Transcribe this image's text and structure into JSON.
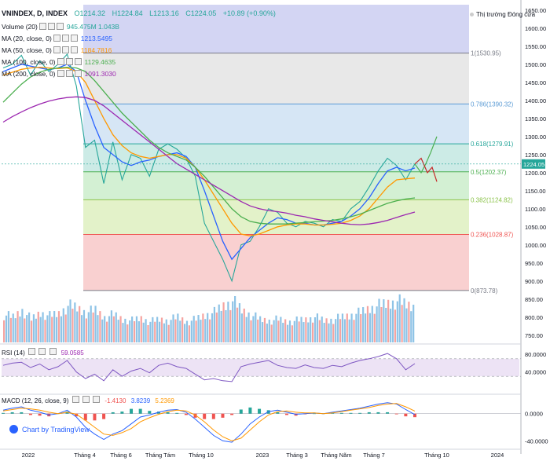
{
  "header": {
    "symbol": "VNINDEX, D, INDEX",
    "open": "O1214.32",
    "high": "H1224.84",
    "low": "L1213.16",
    "close": "C1224.05",
    "change": "+10.89 (+0.90%)",
    "session": "Thị trường Đóng cửa"
  },
  "indicators": [
    {
      "name": "Volume (20)",
      "value": "945.475M  1.043B",
      "color": "#26a69a"
    },
    {
      "name": "MA (20, close, 0)",
      "value": "1213.5495",
      "color": "#2962ff"
    },
    {
      "name": "MA (50, close, 0)",
      "value": "1184.7816",
      "color": "#ff9800"
    },
    {
      "name": "MA (100, close, 0)",
      "value": "1129.4635",
      "color": "#4caf50"
    },
    {
      "name": "MA (200, close, 0)",
      "value": "1091.3030",
      "color": "#9c27b0"
    }
  ],
  "rsi_label": {
    "name": "RSI (14)",
    "value": "59.0585"
  },
  "macd_label": {
    "name": "MACD (12, 26, close, 9)",
    "v1": "-1.4130",
    "v2": "3.8239",
    "v3": "5.2369"
  },
  "tradingview": "Chart by TradingView",
  "colors": {
    "fib_red": "#f9d0d0",
    "fib_green1": "#e3f2c9",
    "fib_green2": "#d3f0d3",
    "fib_teal": "#ccebe6",
    "fib_blue": "#d6e6f5",
    "fib_grey": "#e8e8e8",
    "fib_top": "#d3d5f3",
    "rsi_band": "#ede3f5"
  },
  "chart_data": {
    "type": "line",
    "title": "VNINDEX, D, INDEX",
    "x_labels": [
      "2022",
      "Tháng 4",
      "Tháng 6",
      "Tháng Tám",
      "Tháng 10",
      "2023",
      "Tháng 3",
      "Tháng Năm",
      "Tháng 7",
      "Tháng 10",
      "2024"
    ],
    "y_ticks": [
      750,
      800,
      850,
      900,
      950,
      1000,
      1050,
      1100,
      1150,
      1200,
      1250,
      1300,
      1350,
      1400,
      1450,
      1500,
      1550,
      1600,
      1650
    ],
    "ylim": [
      730,
      1665
    ],
    "last_price": "1224.05",
    "fib_levels": [
      {
        "ratio": "1",
        "value": 1530.95,
        "label": "1(1530.95)"
      },
      {
        "ratio": "0.786",
        "value": 1390.32,
        "label": "0.786(1390.32)"
      },
      {
        "ratio": "0.618",
        "value": 1279.91,
        "label": "0.618(1279.91)"
      },
      {
        "ratio": "0.5",
        "value": 1202.37,
        "label": "0.5(1202.37)"
      },
      {
        "ratio": "0.382",
        "value": 1124.82,
        "label": "0.382(1124.82)"
      },
      {
        "ratio": "0.236",
        "value": 1028.87,
        "label": "0.236(1028.87)"
      },
      {
        "ratio": "0",
        "value": 873.78,
        "label": "0(873.78)"
      }
    ],
    "series": [
      {
        "name": "price",
        "color": "#26a69a",
        "values": [
          1490,
          1500,
          1525,
          1470,
          1510,
          1480,
          1500,
          1528,
          1440,
          1270,
          1290,
          1170,
          1285,
          1180,
          1250,
          1240,
          1190,
          1265,
          1280,
          1265,
          1240,
          1190,
          1060,
          1010,
          960,
          900,
          1000,
          1010,
          1050,
          1100,
          1090,
          1060,
          1050,
          1065,
          1060,
          1050,
          1070,
          1065,
          1100,
          1120,
          1160,
          1205,
          1240,
          1220,
          1180,
          1224
        ]
      },
      {
        "name": "MA (20, close, 0)",
        "color": "#2962ff",
        "values": [
          1480,
          1490,
          1500,
          1495,
          1490,
          1485,
          1490,
          1500,
          1480,
          1400,
          1330,
          1270,
          1250,
          1230,
          1220,
          1230,
          1235,
          1245,
          1250,
          1255,
          1245,
          1215,
          1150,
          1080,
          1010,
          960,
          990,
          1020,
          1040,
          1060,
          1075,
          1070,
          1060,
          1060,
          1055,
          1055,
          1060,
          1065,
          1080,
          1100,
          1130,
          1170,
          1205,
          1215,
          1205,
          1213
        ]
      },
      {
        "name": "MA (50, close, 0)",
        "color": "#ff9800",
        "values": [
          1470,
          1478,
          1486,
          1490,
          1492,
          1490,
          1488,
          1490,
          1480,
          1450,
          1400,
          1350,
          1305,
          1275,
          1255,
          1245,
          1240,
          1245,
          1250,
          1250,
          1240,
          1215,
          1180,
          1140,
          1100,
          1060,
          1030,
          1025,
          1030,
          1040,
          1050,
          1055,
          1058,
          1058,
          1055,
          1055,
          1057,
          1060,
          1068,
          1080,
          1100,
          1130,
          1160,
          1180,
          1183,
          1185
        ]
      },
      {
        "name": "MA (100, close, 0)",
        "color": "#4caf50",
        "values": [
          1395,
          1420,
          1445,
          1465,
          1478,
          1486,
          1490,
          1492,
          1490,
          1480,
          1455,
          1425,
          1395,
          1365,
          1340,
          1315,
          1290,
          1270,
          1255,
          1245,
          1235,
          1215,
          1190,
          1160,
          1130,
          1100,
          1078,
          1065,
          1060,
          1058,
          1058,
          1058,
          1060,
          1062,
          1064,
          1066,
          1068,
          1072,
          1078,
          1085,
          1095,
          1105,
          1115,
          1122,
          1127,
          1130
        ]
      },
      {
        "name": "MA (200, close, 0)",
        "color": "#9c27b0",
        "values": [
          1340,
          1355,
          1368,
          1380,
          1390,
          1398,
          1404,
          1408,
          1410,
          1408,
          1400,
          1385,
          1365,
          1345,
          1325,
          1305,
          1285,
          1265,
          1245,
          1225,
          1210,
          1195,
          1180,
          1165,
          1150,
          1135,
          1120,
          1108,
          1100,
          1095,
          1092,
          1088,
          1082,
          1078,
          1072,
          1068,
          1064,
          1060,
          1057,
          1056,
          1058,
          1062,
          1068,
          1076,
          1084,
          1091
        ]
      }
    ],
    "volume": [
      120,
      110,
      140,
      100,
      130,
      115,
      125,
      160,
      150,
      130,
      140,
      110,
      120,
      100,
      95,
      105,
      90,
      100,
      95,
      110,
      90,
      100,
      120,
      130,
      160,
      180,
      140,
      120,
      100,
      95,
      100,
      90,
      95,
      100,
      110,
      95,
      100,
      110,
      120,
      130,
      150,
      160,
      170,
      180,
      165,
      155
    ],
    "rsi": {
      "ylim": [
        0,
        100
      ],
      "y_ticks": [
        40,
        80
      ],
      "band": [
        30,
        70
      ],
      "values": [
        55,
        60,
        62,
        50,
        58,
        45,
        52,
        66,
        40,
        25,
        35,
        20,
        45,
        30,
        42,
        48,
        38,
        55,
        60,
        52,
        48,
        35,
        22,
        25,
        20,
        18,
        52,
        58,
        62,
        66,
        55,
        50,
        48,
        56,
        50,
        48,
        55,
        52,
        60,
        66,
        70,
        75,
        82,
        70,
        45,
        59
      ]
    },
    "macd": {
      "ylim": [
        -50,
        25
      ],
      "y_ticks": [
        0,
        -40
      ],
      "macd": [
        5,
        8,
        10,
        5,
        2,
        -2,
        0,
        5,
        -5,
        -20,
        -30,
        -38,
        -30,
        -25,
        -15,
        -5,
        -2,
        2,
        5,
        6,
        2,
        -8,
        -20,
        -32,
        -40,
        -42,
        -30,
        -15,
        -5,
        3,
        5,
        2,
        -1,
        0,
        1,
        0,
        2,
        4,
        6,
        8,
        11,
        14,
        16,
        14,
        6,
        -1.4
      ],
      "signal": [
        4,
        6,
        8,
        7,
        5,
        2,
        0,
        2,
        -1,
        -10,
        -20,
        -30,
        -32,
        -28,
        -22,
        -12,
        -6,
        -1,
        3,
        5,
        4,
        -2,
        -12,
        -24,
        -34,
        -40,
        -36,
        -24,
        -12,
        -2,
        3,
        4,
        2,
        1,
        1,
        0,
        1,
        3,
        5,
        7,
        9,
        12,
        14,
        15,
        10,
        3.8
      ]
    }
  }
}
